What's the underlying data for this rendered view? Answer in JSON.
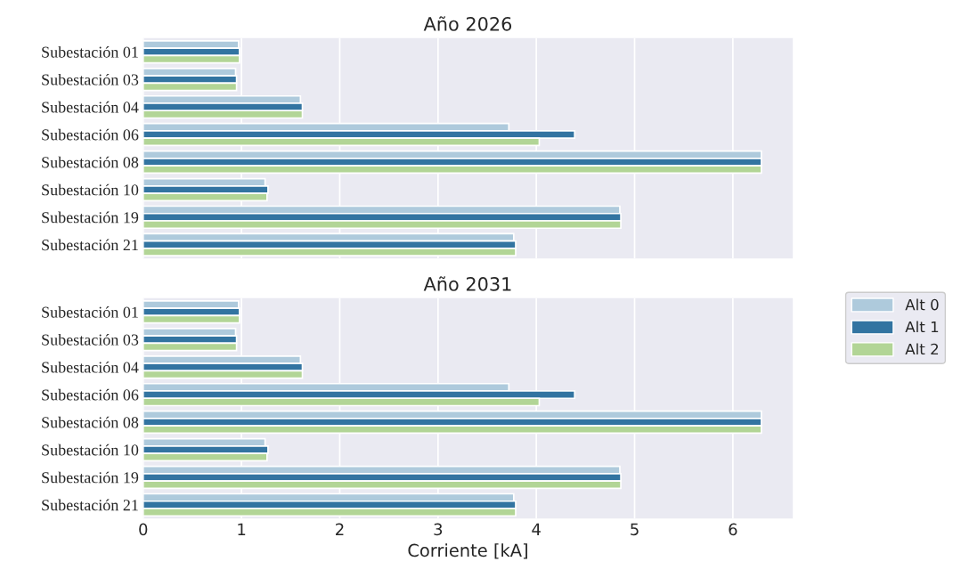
{
  "chart_data": [
    {
      "type": "bar",
      "orientation": "horizontal",
      "title": "Año 2026",
      "categories": [
        "Subestación 01",
        "Subestación 03",
        "Subestación 04",
        "Subestación 06",
        "Subestación 08",
        "Subestación 10",
        "Subestación 19",
        "Subestación 21"
      ],
      "series": [
        {
          "name": "Alt 0",
          "color": "#aecadc",
          "values": [
            0.97,
            0.94,
            1.6,
            3.72,
            6.29,
            1.24,
            4.85,
            3.77
          ]
        },
        {
          "name": "Alt 1",
          "color": "#3274a1",
          "values": [
            0.98,
            0.95,
            1.62,
            4.39,
            6.29,
            1.27,
            4.86,
            3.79
          ]
        },
        {
          "name": "Alt 2",
          "color": "#b2d596",
          "values": [
            0.98,
            0.95,
            1.62,
            4.03,
            6.29,
            1.26,
            4.86,
            3.79
          ]
        }
      ],
      "xlim": [
        0,
        6.61
      ],
      "xticks": [
        0,
        1,
        2,
        3,
        4,
        5,
        6
      ],
      "tick_labels": "y",
      "grid": "x",
      "legend": "right"
    },
    {
      "type": "bar",
      "orientation": "horizontal",
      "title": "Año 2031",
      "xlabel": "Corriente [kA]",
      "categories": [
        "Subestación 01",
        "Subestación 03",
        "Subestación 04",
        "Subestación 06",
        "Subestación 08",
        "Subestación 10",
        "Subestación 19",
        "Subestación 21"
      ],
      "series": [
        {
          "color": "#aecadc",
          "values": [
            0.97,
            0.94,
            1.6,
            3.72,
            6.29,
            1.24,
            4.85,
            3.77
          ]
        },
        {
          "color": "#3274a1",
          "values": [
            0.98,
            0.95,
            1.62,
            4.39,
            6.29,
            1.27,
            4.86,
            3.79
          ]
        },
        {
          "color": "#b2d596",
          "values": [
            0.98,
            0.95,
            1.62,
            4.03,
            6.29,
            1.26,
            4.86,
            3.79
          ]
        }
      ],
      "xlim": [
        0,
        6.61
      ],
      "xticks": [
        0,
        1,
        2,
        3,
        4,
        5,
        6
      ],
      "grid": "x"
    }
  ]
}
